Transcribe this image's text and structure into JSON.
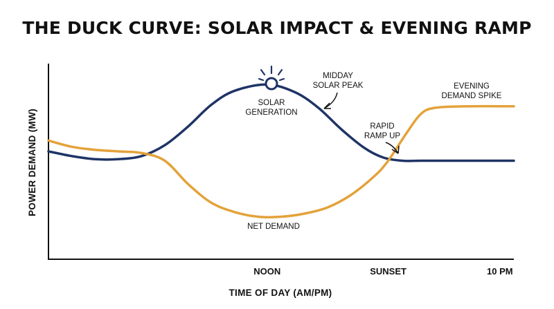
{
  "chart_data": {
    "type": "line",
    "title": "THE DUCK CURVE: SOLAR IMPACT & EVENING RAMP",
    "xlabel": "TIME OF DAY (AM/PM)",
    "ylabel": "POWER DEMAND (MW)",
    "x_ticks": [
      {
        "label": "NOON",
        "x": 0.47
      },
      {
        "label": "SUNSET",
        "x": 0.73
      },
      {
        "label": "10 PM",
        "x": 0.97
      }
    ],
    "xlim": [
      0,
      1
    ],
    "ylim": [
      0,
      1
    ],
    "grid": false,
    "series": [
      {
        "name": "SOLAR GENERATION",
        "color": "#1f3466",
        "points": [
          [
            0,
            0.56
          ],
          [
            0.05,
            0.53
          ],
          [
            0.1,
            0.51
          ],
          [
            0.15,
            0.51
          ],
          [
            0.2,
            0.53
          ],
          [
            0.25,
            0.6
          ],
          [
            0.3,
            0.72
          ],
          [
            0.35,
            0.86
          ],
          [
            0.4,
            0.95
          ],
          [
            0.47,
            0.99
          ],
          [
            0.53,
            0.94
          ],
          [
            0.58,
            0.84
          ],
          [
            0.63,
            0.7
          ],
          [
            0.68,
            0.58
          ],
          [
            0.72,
            0.52
          ],
          [
            0.76,
            0.5
          ],
          [
            0.8,
            0.5
          ],
          [
            0.9,
            0.5
          ],
          [
            1,
            0.5
          ]
        ]
      },
      {
        "name": "NET DEMAND",
        "color": "#e3a23a",
        "points": [
          [
            0,
            0.63
          ],
          [
            0.05,
            0.59
          ],
          [
            0.1,
            0.57
          ],
          [
            0.15,
            0.56
          ],
          [
            0.2,
            0.55
          ],
          [
            0.25,
            0.5
          ],
          [
            0.3,
            0.35
          ],
          [
            0.35,
            0.23
          ],
          [
            0.4,
            0.17
          ],
          [
            0.45,
            0.14
          ],
          [
            0.5,
            0.14
          ],
          [
            0.55,
            0.16
          ],
          [
            0.6,
            0.2
          ],
          [
            0.65,
            0.28
          ],
          [
            0.7,
            0.4
          ],
          [
            0.73,
            0.5
          ],
          [
            0.77,
            0.68
          ],
          [
            0.8,
            0.8
          ],
          [
            0.83,
            0.84
          ],
          [
            0.9,
            0.85
          ],
          [
            1,
            0.85
          ]
        ]
      }
    ],
    "annotations": {
      "solar_generation": [
        "SOLAR",
        "GENERATION"
      ],
      "midday_peak": [
        "MIDDAY",
        "SOLAR PEAK"
      ],
      "evening_spike": [
        "EVENING",
        "DEMAND SPIKE"
      ],
      "ramp_up": [
        "RAPID",
        "RAMP UP"
      ],
      "net_demand": "NET DEMAND"
    }
  }
}
